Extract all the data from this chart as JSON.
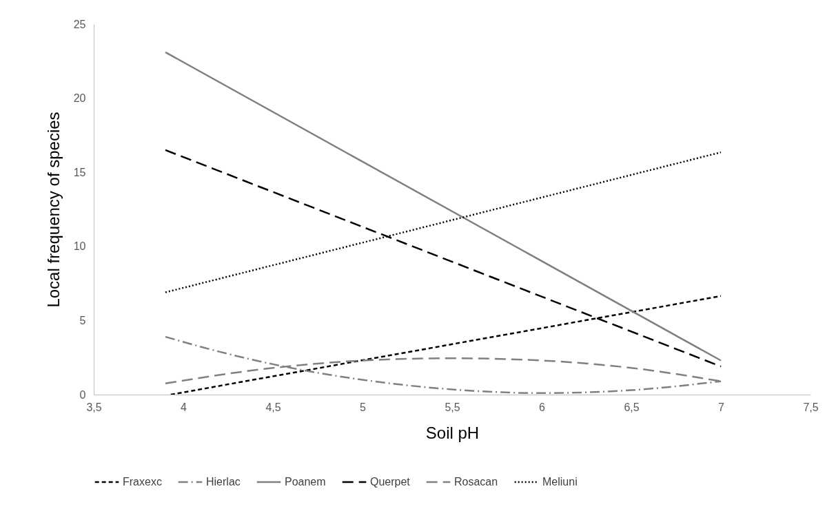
{
  "chart_data": {
    "type": "line",
    "xlabel": "Soil pH",
    "ylabel": "Local frequency of species",
    "xlim": [
      3.5,
      7.5
    ],
    "xticks": [
      {
        "value": 3.5,
        "label": "3,5"
      },
      4,
      {
        "value": 4.5,
        "label": "4,5"
      },
      5,
      {
        "value": 5.5,
        "label": "5,5"
      },
      6,
      {
        "value": 6.5,
        "label": "6,5"
      },
      7,
      {
        "value": 7.5,
        "label": "7,5"
      }
    ],
    "ylim": [
      0,
      25
    ],
    "yticks": [
      0,
      5,
      10,
      15,
      20,
      25
    ],
    "grid": false,
    "legend": "bottom",
    "marker": "none",
    "series": [
      {
        "name": "Fraxexc",
        "color": "#000000",
        "line_style": "dashed",
        "x": [
          3.93,
          7
        ],
        "values": [
          0,
          6.65
        ]
      },
      {
        "name": "Hierlac",
        "color": "#808080",
        "line_style": "dashdot",
        "x": [
          3.9,
          4.2,
          4.5,
          5,
          5.5,
          6,
          6.5,
          7
        ],
        "values": [
          3.9,
          2.9,
          2.05,
          1.0,
          0.35,
          0.1,
          0.3,
          0.9
        ]
      },
      {
        "name": "Poanem",
        "color": "#808080",
        "line_style": "solid",
        "x": [
          3.9,
          7
        ],
        "values": [
          23.1,
          2.3
        ]
      },
      {
        "name": "Querpet",
        "color": "#000000",
        "line_style": "longdash",
        "x": [
          3.9,
          7
        ],
        "values": [
          16.5,
          1.9
        ]
      },
      {
        "name": "Rosacan",
        "color": "#808080",
        "line_style": "longdash",
        "x": [
          3.9,
          4.5,
          5,
          5.5,
          6,
          6.5,
          7
        ],
        "values": [
          0.75,
          1.8,
          2.3,
          2.45,
          2.3,
          1.8,
          0.9
        ]
      },
      {
        "name": "Meliuni",
        "color": "#000000",
        "line_style": "dotted",
        "x": [
          3.9,
          7
        ],
        "values": [
          6.9,
          16.35
        ]
      }
    ]
  }
}
